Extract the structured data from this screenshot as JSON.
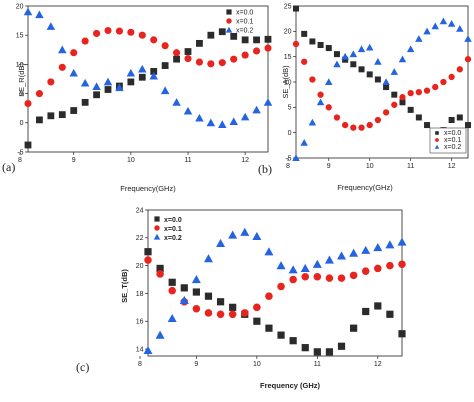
{
  "panels": [
    {
      "label": "(a)",
      "xlabel": "Frequency(GHz)",
      "ylabel": "SE_R(dB)"
    },
    {
      "label": "(b)",
      "xlabel": "Frequency(GHz)",
      "ylabel": "SE_A(dB)"
    },
    {
      "label": "(c)",
      "xlabel": "Frequency (GHz)",
      "ylabel": "SE_T(dB)"
    }
  ],
  "colors": {
    "x0": "#2b2b2b",
    "x1": "#e8241f",
    "x2": "#2464e0"
  },
  "chart_data": [
    {
      "type": "scatter",
      "xlabel": "Frequency(GHz)",
      "ylabel": "SE_R(dB)",
      "xlim": [
        8.2,
        12.4
      ],
      "ylim": [
        -5,
        20
      ],
      "xticks": [
        8,
        9,
        10,
        11,
        12
      ],
      "yticks": [
        -5,
        0,
        5,
        10,
        15,
        20
      ],
      "legend_position": "top-right",
      "series": [
        {
          "name": "x=0.0",
          "marker": "square",
          "color": "#2b2b2b",
          "x": [
            8.2,
            8.4,
            8.6,
            8.8,
            9.0,
            9.2,
            9.4,
            9.6,
            9.8,
            10.0,
            10.2,
            10.4,
            10.6,
            10.8,
            11.0,
            11.2,
            11.4,
            11.6,
            11.8,
            12.0,
            12.2,
            12.4
          ],
          "values": [
            -3.8,
            0.5,
            1.2,
            1.4,
            2.1,
            3.5,
            4.8,
            5.7,
            6.3,
            7.0,
            7.8,
            8.8,
            9.8,
            10.9,
            12.2,
            13.6,
            15.0,
            15.6,
            14.8,
            14.2,
            14.2,
            14.3
          ]
        },
        {
          "name": "x=0.1",
          "marker": "circle",
          "color": "#e8241f",
          "x": [
            8.2,
            8.4,
            8.6,
            8.8,
            9.0,
            9.2,
            9.4,
            9.6,
            9.8,
            10.0,
            10.2,
            10.4,
            10.6,
            10.8,
            11.0,
            11.2,
            11.4,
            11.6,
            11.8,
            12.0,
            12.2,
            12.4
          ],
          "values": [
            3.3,
            5.0,
            7.0,
            9.5,
            12.0,
            14.0,
            15.3,
            15.8,
            15.7,
            15.5,
            15.0,
            14.2,
            13.2,
            12.0,
            11.0,
            10.4,
            10.1,
            10.3,
            10.9,
            11.6,
            12.3,
            12.8
          ]
        },
        {
          "name": "x=0.2",
          "marker": "triangle",
          "color": "#2464e0",
          "x": [
            8.2,
            8.4,
            8.6,
            8.8,
            9.0,
            9.2,
            9.4,
            9.6,
            9.8,
            10.0,
            10.2,
            10.4,
            10.6,
            10.8,
            11.0,
            11.2,
            11.4,
            11.6,
            11.8,
            12.0,
            12.2,
            12.4
          ],
          "values": [
            19.0,
            18.5,
            16.5,
            12.5,
            8.5,
            6.8,
            6.2,
            7.0,
            6.0,
            8.5,
            9.2,
            8.0,
            5.5,
            3.5,
            2.0,
            0.8,
            0.0,
            -0.3,
            0.2,
            1.0,
            2.2,
            3.5
          ]
        }
      ]
    },
    {
      "type": "scatter",
      "xlabel": "Frequency(GHz)",
      "ylabel": "SE_A(dB)",
      "xlim": [
        8.2,
        12.4
      ],
      "ylim": [
        -5,
        25
      ],
      "xticks": [
        8,
        9,
        10,
        11,
        12
      ],
      "yticks": [
        -5,
        0,
        5,
        10,
        15,
        20,
        25
      ],
      "legend_position": "bottom-right",
      "series": [
        {
          "name": "x=0.0",
          "marker": "square",
          "color": "#2b2b2b",
          "x": [
            8.2,
            8.4,
            8.6,
            8.8,
            9.0,
            9.2,
            9.4,
            9.6,
            9.8,
            10.0,
            10.2,
            10.4,
            10.6,
            10.8,
            11.0,
            11.2,
            11.4,
            11.6,
            11.8,
            12.0,
            12.2,
            12.4
          ],
          "values": [
            24.5,
            19.5,
            18.0,
            17.3,
            16.7,
            15.5,
            14.4,
            13.5,
            12.5,
            11.5,
            10.5,
            9.0,
            7.5,
            6.0,
            4.5,
            3.0,
            1.5,
            0.0,
            0.5,
            2.5,
            3.0,
            1.5
          ]
        },
        {
          "name": "x=0.1",
          "marker": "circle",
          "color": "#e8241f",
          "x": [
            8.2,
            8.4,
            8.6,
            8.8,
            9.0,
            9.2,
            9.4,
            9.6,
            9.8,
            10.0,
            10.2,
            10.4,
            10.6,
            10.8,
            11.0,
            11.2,
            11.4,
            11.6,
            11.8,
            12.0,
            12.2,
            12.4
          ],
          "values": [
            17.5,
            14.0,
            10.5,
            7.5,
            5.0,
            3.0,
            1.5,
            1.0,
            1.0,
            1.5,
            2.5,
            4.0,
            5.5,
            7.0,
            7.8,
            8.0,
            8.3,
            9.0,
            10.0,
            11.0,
            12.5,
            14.5
          ]
        },
        {
          "name": "x=0.2",
          "marker": "triangle",
          "color": "#2464e0",
          "x": [
            8.2,
            8.4,
            8.6,
            8.8,
            9.0,
            9.2,
            9.4,
            9.6,
            9.8,
            10.0,
            10.2,
            10.4,
            10.6,
            10.8,
            11.0,
            11.2,
            11.4,
            11.6,
            11.8,
            12.0,
            12.2,
            12.4
          ],
          "values": [
            -5.0,
            -2.0,
            2.0,
            6.0,
            10.0,
            13.5,
            15.0,
            15.5,
            16.5,
            16.8,
            14.0,
            10.0,
            12.0,
            14.5,
            16.5,
            18.5,
            20.0,
            21.0,
            22.0,
            21.5,
            20.5,
            18.5
          ]
        }
      ]
    },
    {
      "type": "scatter",
      "xlabel": "Frequency (GHz)",
      "ylabel": "SE_T(dB)",
      "xlim": [
        8.2,
        12.4
      ],
      "ylim": [
        13.5,
        24
      ],
      "xticks": [
        8,
        9,
        10,
        11,
        12
      ],
      "yticks": [
        14,
        16,
        18,
        20,
        22,
        24
      ],
      "legend_position": "top-left",
      "series": [
        {
          "name": "x=0.0",
          "marker": "square",
          "color": "#2b2b2b",
          "x": [
            8.2,
            8.4,
            8.6,
            8.8,
            9.0,
            9.2,
            9.4,
            9.6,
            9.8,
            10.0,
            10.2,
            10.4,
            10.6,
            10.8,
            11.0,
            11.2,
            11.4,
            11.6,
            11.8,
            12.0,
            12.2,
            12.4
          ],
          "values": [
            21.0,
            19.8,
            18.8,
            18.4,
            18.1,
            17.8,
            17.4,
            17.0,
            16.5,
            16.0,
            15.5,
            15.0,
            14.6,
            14.1,
            13.8,
            13.8,
            14.2,
            15.5,
            16.7,
            17.1,
            16.5,
            15.1
          ]
        },
        {
          "name": "x=0.1",
          "marker": "circle",
          "color": "#e8241f",
          "x": [
            8.2,
            8.4,
            8.6,
            8.8,
            9.0,
            9.2,
            9.4,
            9.6,
            9.8,
            10.0,
            10.2,
            10.4,
            10.6,
            10.8,
            11.0,
            11.2,
            11.4,
            11.6,
            11.8,
            12.0,
            12.2,
            12.4
          ],
          "values": [
            20.4,
            19.4,
            18.2,
            17.4,
            16.9,
            16.6,
            16.5,
            16.5,
            16.6,
            17.0,
            17.8,
            18.5,
            19.0,
            19.2,
            19.2,
            19.1,
            19.1,
            19.3,
            19.6,
            19.8,
            20.0,
            20.1
          ]
        },
        {
          "name": "x=0.2",
          "marker": "triangle",
          "color": "#2464e0",
          "x": [
            8.2,
            8.4,
            8.6,
            8.8,
            9.0,
            9.2,
            9.4,
            9.6,
            9.8,
            10.0,
            10.2,
            10.4,
            10.6,
            10.8,
            11.0,
            11.2,
            11.4,
            11.6,
            11.8,
            12.0,
            12.2,
            12.4
          ],
          "values": [
            13.9,
            15.0,
            16.2,
            17.5,
            19.0,
            20.5,
            21.6,
            22.2,
            22.4,
            22.1,
            21.0,
            20.0,
            19.7,
            19.8,
            20.1,
            20.4,
            20.7,
            20.9,
            21.1,
            21.3,
            21.5,
            21.7
          ]
        }
      ]
    }
  ]
}
